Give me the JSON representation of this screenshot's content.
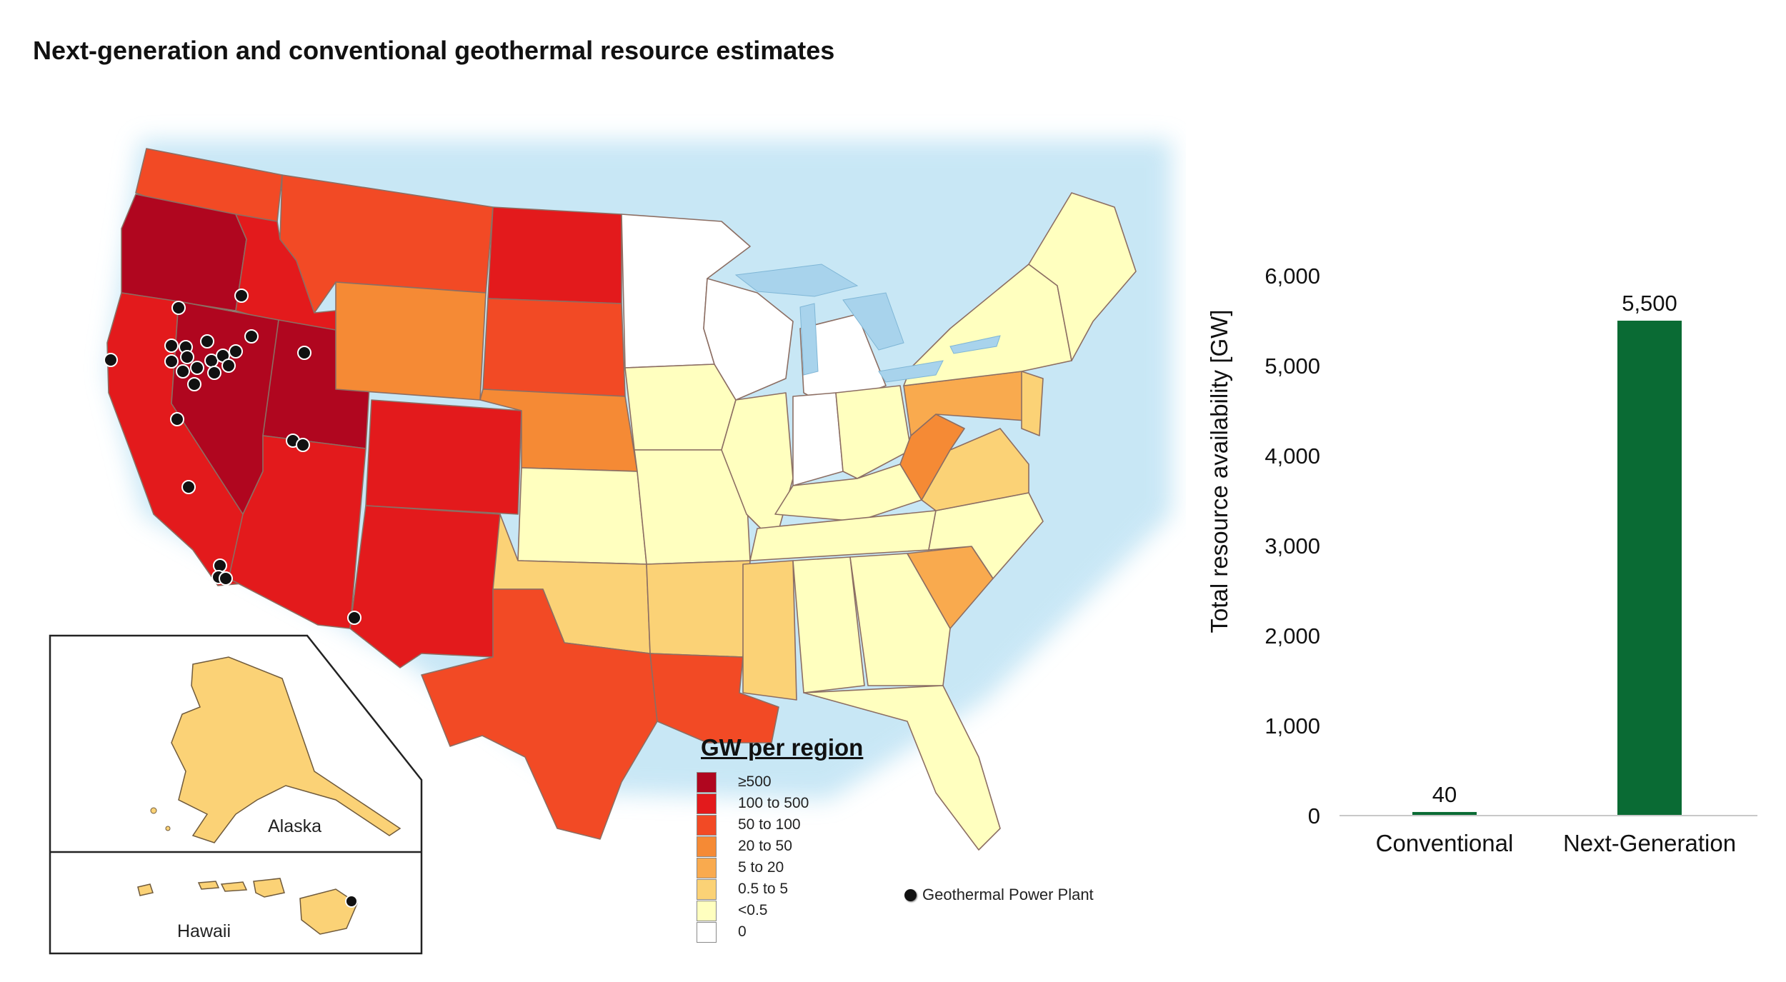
{
  "title": "Next-generation and conventional geothermal resource estimates",
  "map": {
    "alaska_label": "Alaska",
    "hawaii_label": "Hawaii",
    "legend": {
      "title": "GW per region",
      "items": [
        {
          "label": "≥500",
          "color": "#b0061f"
        },
        {
          "label": "100 to 500",
          "color": "#e31a1c"
        },
        {
          "label": "50 to 100",
          "color": "#f24a25"
        },
        {
          "label": "20 to 50",
          "color": "#f58a35"
        },
        {
          "label": "5 to 20",
          "color": "#f9aa4e"
        },
        {
          "label": "0.5 to 5",
          "color": "#fbd276"
        },
        {
          "label": "<0.5",
          "color": "#ffffbf"
        },
        {
          "label": "0",
          "color": "#ffffff"
        }
      ]
    },
    "plant_legend_label": "Geothermal Power Plant"
  },
  "chart_data": {
    "type": "bar",
    "categories": [
      "Conventional",
      "Next-Generation"
    ],
    "values": [
      40,
      5500
    ],
    "value_labels": [
      "40",
      "5,500"
    ],
    "ylabel": "Total resource availability [GW]",
    "xlabel": "",
    "ylim": [
      0,
      6000
    ],
    "yticks": [
      0,
      1000,
      2000,
      3000,
      4000,
      5000,
      6000
    ],
    "ytick_labels": [
      "0",
      "1,000",
      "2,000",
      "3,000",
      "4,000",
      "5,000",
      "6,000"
    ],
    "bar_color": "#0a6b34",
    "grid": false
  }
}
